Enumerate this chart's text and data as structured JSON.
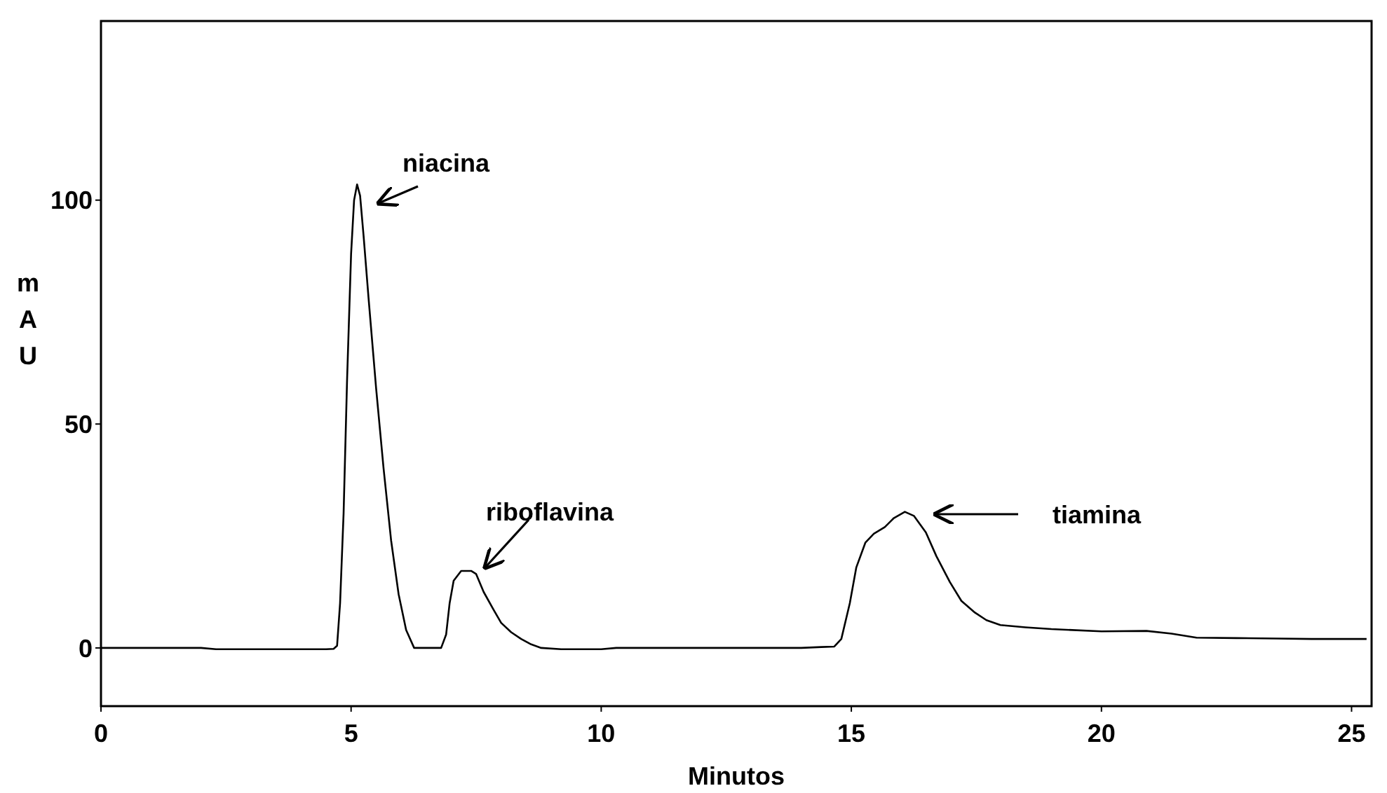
{
  "chart_data": {
    "type": "line",
    "xlabel": "Minutos",
    "ylabel": "mAU",
    "xlim": [
      0,
      25.4
    ],
    "ylim": [
      -13,
      140
    ],
    "xticks": [
      0,
      5,
      10,
      15,
      20,
      25
    ],
    "yticks": [
      0,
      50,
      100
    ],
    "grid": false,
    "marker": "none",
    "line_style": "solid",
    "series": [
      {
        "color": "#000000",
        "x": [
          0,
          1,
          2,
          2.3,
          3,
          4,
          4.5,
          4.65,
          4.72,
          4.78,
          4.85,
          4.92,
          5.0,
          5.06,
          5.12,
          5.18,
          5.25,
          5.35,
          5.5,
          5.65,
          5.8,
          5.95,
          6.1,
          6.26,
          6.4,
          6.6,
          6.8,
          6.9,
          6.97,
          7.05,
          7.2,
          7.4,
          7.5,
          7.65,
          7.85,
          8.0,
          8.2,
          8.4,
          8.6,
          8.8,
          9.2,
          10,
          10.3,
          11,
          12,
          13,
          14,
          14.4,
          14.66,
          14.8,
          14.97,
          15.1,
          15.28,
          15.45,
          15.67,
          15.85,
          16.07,
          16.25,
          16.49,
          16.7,
          16.97,
          17.2,
          17.47,
          17.7,
          17.98,
          18.48,
          19,
          20,
          20.9,
          21.4,
          21.9,
          22.7,
          23.5,
          24.2,
          25.3
        ],
        "values": [
          0,
          0,
          0,
          -0.3,
          -0.3,
          -0.3,
          -0.3,
          -0.2,
          0.5,
          10,
          30,
          60,
          88,
          100,
          103.5,
          101,
          92,
          78,
          58,
          40,
          24,
          12,
          4,
          0,
          0,
          0,
          0,
          3,
          10,
          15,
          17.2,
          17.2,
          16.5,
          12.5,
          8.5,
          5.6,
          3.5,
          2,
          0.8,
          0,
          -0.3,
          -0.3,
          0,
          0,
          0,
          0,
          0,
          0.2,
          0.3,
          2,
          10,
          18,
          23.5,
          25.5,
          27,
          29,
          30.4,
          29.5,
          25.8,
          20.5,
          14.7,
          10.5,
          7.9,
          6.2,
          5.1,
          4.6,
          4.2,
          3.7,
          3.8,
          3.2,
          2.3,
          2.2,
          2.1,
          2,
          2
        ]
      }
    ],
    "annotations": [
      "niacina",
      "riboflavina",
      "tiamina"
    ]
  }
}
